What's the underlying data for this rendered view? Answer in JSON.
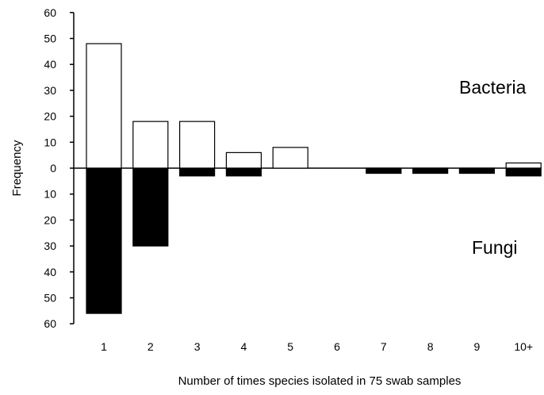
{
  "chart_data": {
    "type": "bar",
    "categories": [
      "1",
      "2",
      "3",
      "4",
      "5",
      "6",
      "7",
      "8",
      "9",
      "10+"
    ],
    "series": [
      {
        "name": "Bacteria",
        "direction": "up",
        "fill": "#ffffff",
        "values": [
          48,
          18,
          18,
          6,
          8,
          0,
          0,
          0,
          0,
          2
        ]
      },
      {
        "name": "Fungi",
        "direction": "down",
        "fill": "#000000",
        "values": [
          56,
          30,
          3,
          3,
          0,
          0,
          2,
          2,
          2,
          3
        ]
      }
    ],
    "ylabel": "Frequency",
    "xlabel": "Number of times species isolated in 75 swab samples",
    "ylim": [
      -60,
      60
    ],
    "yticks": [
      "60",
      "50",
      "40",
      "30",
      "20",
      "10",
      "0",
      "10",
      "20",
      "30",
      "40",
      "50",
      "60"
    ],
    "ytick_values": [
      60,
      50,
      40,
      30,
      20,
      10,
      0,
      -10,
      -20,
      -30,
      -40,
      -50,
      -60
    ],
    "grid": false,
    "legend": "none"
  }
}
